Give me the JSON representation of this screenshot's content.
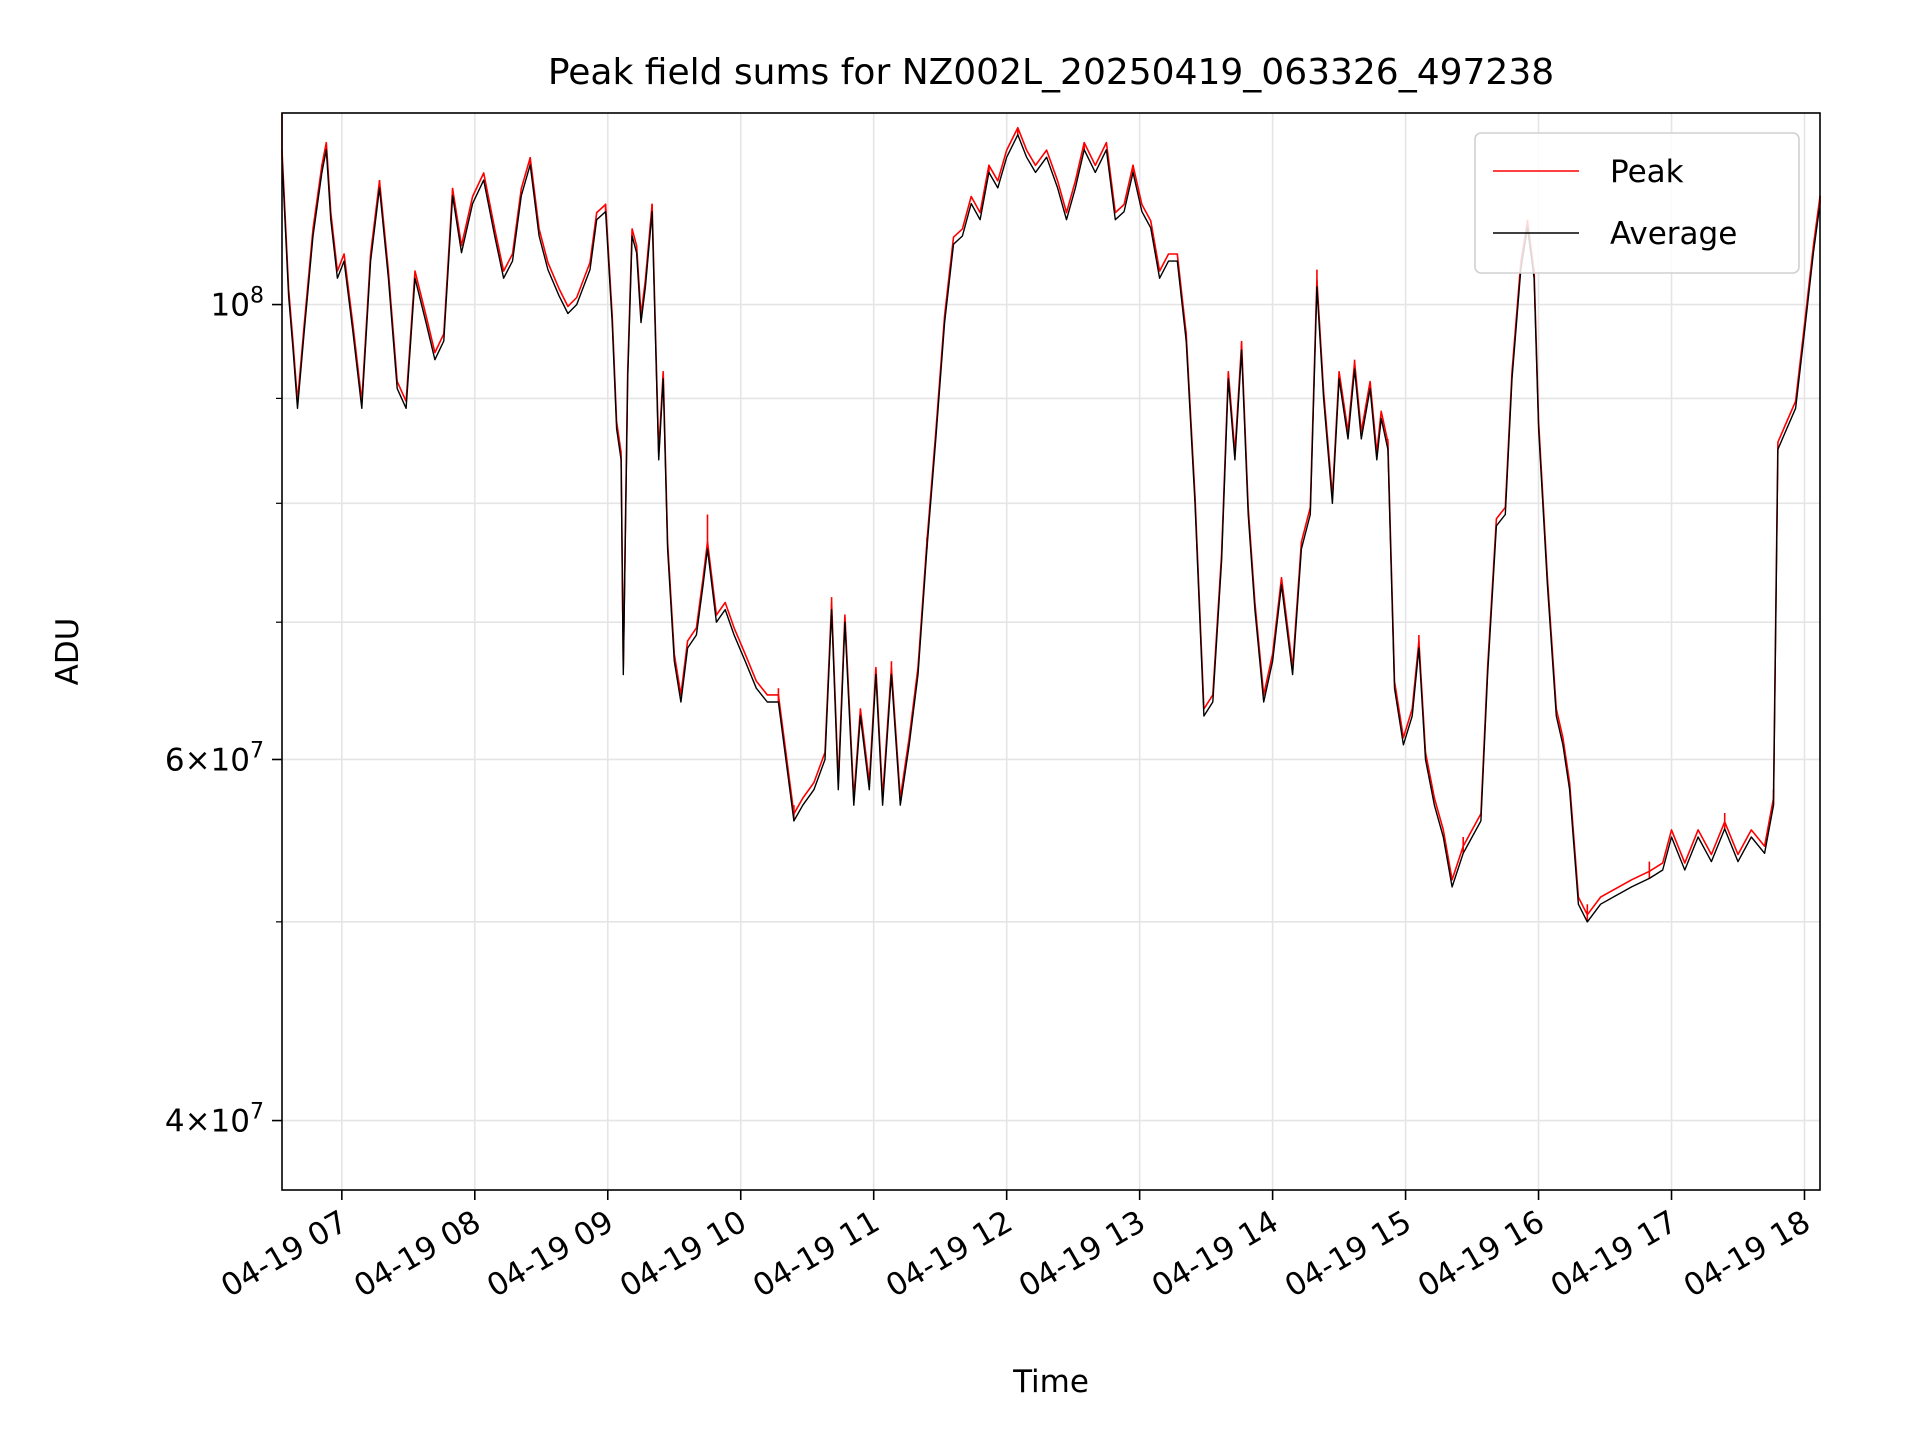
{
  "chart_data": {
    "type": "line",
    "title": "Peak field sums for NZ002L_20250419_063326_497238",
    "xlabel": "Time",
    "ylabel": "ADU",
    "yscale": "log",
    "xlim": [
      "2025-04-19 06:33",
      "2025-04-19 18:07"
    ],
    "ylim": [
      37000000,
      124000000
    ],
    "x_ticks": [
      {
        "time": "2025-04-19 07:00",
        "label": "04-19 07"
      },
      {
        "time": "2025-04-19 08:00",
        "label": "04-19 08"
      },
      {
        "time": "2025-04-19 09:00",
        "label": "04-19 09"
      },
      {
        "time": "2025-04-19 10:00",
        "label": "04-19 10"
      },
      {
        "time": "2025-04-19 11:00",
        "label": "04-19 11"
      },
      {
        "time": "2025-04-19 12:00",
        "label": "04-19 12"
      },
      {
        "time": "2025-04-19 13:00",
        "label": "04-19 13"
      },
      {
        "time": "2025-04-19 14:00",
        "label": "04-19 14"
      },
      {
        "time": "2025-04-19 15:00",
        "label": "04-19 15"
      },
      {
        "time": "2025-04-19 16:00",
        "label": "04-19 16"
      },
      {
        "time": "2025-04-19 17:00",
        "label": "04-19 17"
      },
      {
        "time": "2025-04-19 18:00",
        "label": "04-19 18"
      }
    ],
    "y_major_ticks": [
      {
        "value": 40000000,
        "base": "4×10",
        "exp": "7"
      },
      {
        "value": 60000000,
        "base": "6×10",
        "exp": "7"
      },
      {
        "value": 100000000,
        "base": "10",
        "exp": "8"
      }
    ],
    "y_minor_ticks": [
      50000000,
      70000000,
      80000000,
      90000000
    ],
    "grid": true,
    "legend_position": "top-right",
    "series": [
      {
        "name": "Average",
        "color": "#000000",
        "points": [
          [
            "2025-04-19 06:33",
            118000000
          ],
          [
            "2025-04-19 06:36",
            101000000
          ],
          [
            "2025-04-19 06:38",
            95000000
          ],
          [
            "2025-04-19 06:40",
            89000000
          ],
          [
            "2025-04-19 06:43",
            97000000
          ],
          [
            "2025-04-19 06:47",
            108000000
          ],
          [
            "2025-04-19 06:51",
            116000000
          ],
          [
            "2025-04-19 06:53",
            119000000
          ],
          [
            "2025-04-19 06:55",
            110000000
          ],
          [
            "2025-04-19 06:58",
            103000000
          ],
          [
            "2025-04-19 07:01",
            105000000
          ],
          [
            "2025-04-19 07:05",
            97000000
          ],
          [
            "2025-04-19 07:09",
            89000000
          ],
          [
            "2025-04-19 07:13",
            105000000
          ],
          [
            "2025-04-19 07:17",
            114000000
          ],
          [
            "2025-04-19 07:21",
            103000000
          ],
          [
            "2025-04-19 07:25",
            91000000
          ],
          [
            "2025-04-19 07:29",
            89000000
          ],
          [
            "2025-04-19 07:33",
            103000000
          ],
          [
            "2025-04-19 07:38",
            98000000
          ],
          [
            "2025-04-19 07:42",
            94000000
          ],
          [
            "2025-04-19 07:46",
            96000000
          ],
          [
            "2025-04-19 07:50",
            113000000
          ],
          [
            "2025-04-19 07:54",
            106000000
          ],
          [
            "2025-04-19 07:59",
            112000000
          ],
          [
            "2025-04-19 08:04",
            115000000
          ],
          [
            "2025-04-19 08:09",
            108000000
          ],
          [
            "2025-04-19 08:13",
            103000000
          ],
          [
            "2025-04-19 08:17",
            105000000
          ],
          [
            "2025-04-19 08:21",
            113000000
          ],
          [
            "2025-04-19 08:25",
            117000000
          ],
          [
            "2025-04-19 08:29",
            108000000
          ],
          [
            "2025-04-19 08:33",
            104000000
          ],
          [
            "2025-04-19 08:38",
            101000000
          ],
          [
            "2025-04-19 08:42",
            99000000
          ],
          [
            "2025-04-19 08:46",
            100000000
          ],
          [
            "2025-04-19 08:52",
            104000000
          ],
          [
            "2025-04-19 08:55",
            110000000
          ],
          [
            "2025-04-19 08:59",
            111000000
          ],
          [
            "2025-04-19 09:02",
            98000000
          ],
          [
            "2025-04-19 09:04",
            87000000
          ],
          [
            "2025-04-19 09:06",
            84000000
          ],
          [
            "2025-04-19 09:07",
            66000000
          ],
          [
            "2025-04-19 09:09",
            92000000
          ],
          [
            "2025-04-19 09:11",
            108000000
          ],
          [
            "2025-04-19 09:13",
            106000000
          ],
          [
            "2025-04-19 09:15",
            98000000
          ],
          [
            "2025-04-19 09:17",
            102000000
          ],
          [
            "2025-04-19 09:20",
            111000000
          ],
          [
            "2025-04-19 09:23",
            84000000
          ],
          [
            "2025-04-19 09:25",
            92000000
          ],
          [
            "2025-04-19 09:27",
            76000000
          ],
          [
            "2025-04-19 09:30",
            67000000
          ],
          [
            "2025-04-19 09:33",
            64000000
          ],
          [
            "2025-04-19 09:36",
            68000000
          ],
          [
            "2025-04-19 09:40",
            69000000
          ],
          [
            "2025-04-19 09:43",
            73000000
          ],
          [
            "2025-04-19 09:45",
            76000000
          ],
          [
            "2025-04-19 09:49",
            70000000
          ],
          [
            "2025-04-19 09:53",
            71000000
          ],
          [
            "2025-04-19 09:57",
            69000000
          ],
          [
            "2025-04-19 10:02",
            67000000
          ],
          [
            "2025-04-19 10:07",
            65000000
          ],
          [
            "2025-04-19 10:12",
            64000000
          ],
          [
            "2025-04-19 10:17",
            64000000
          ],
          [
            "2025-04-19 10:24",
            56000000
          ],
          [
            "2025-04-19 10:28",
            57000000
          ],
          [
            "2025-04-19 10:33",
            58000000
          ],
          [
            "2025-04-19 10:38",
            60000000
          ],
          [
            "2025-04-19 10:41",
            71000000
          ],
          [
            "2025-04-19 10:44",
            58000000
          ],
          [
            "2025-04-19 10:47",
            70000000
          ],
          [
            "2025-04-19 10:51",
            57000000
          ],
          [
            "2025-04-19 10:54",
            63000000
          ],
          [
            "2025-04-19 10:58",
            58000000
          ],
          [
            "2025-04-19 11:01",
            66000000
          ],
          [
            "2025-04-19 11:04",
            57000000
          ],
          [
            "2025-04-19 11:08",
            66000000
          ],
          [
            "2025-04-19 11:12",
            57000000
          ],
          [
            "2025-04-19 11:16",
            61000000
          ],
          [
            "2025-04-19 11:20",
            66000000
          ],
          [
            "2025-04-19 11:24",
            76000000
          ],
          [
            "2025-04-19 11:28",
            86000000
          ],
          [
            "2025-04-19 11:32",
            98000000
          ],
          [
            "2025-04-19 11:36",
            107000000
          ],
          [
            "2025-04-19 11:40",
            108000000
          ],
          [
            "2025-04-19 11:44",
            112000000
          ],
          [
            "2025-04-19 11:48",
            110000000
          ],
          [
            "2025-04-19 11:52",
            116000000
          ],
          [
            "2025-04-19 11:56",
            114000000
          ],
          [
            "2025-04-19 12:00",
            118000000
          ],
          [
            "2025-04-19 12:05",
            121000000
          ],
          [
            "2025-04-19 12:09",
            118000000
          ],
          [
            "2025-04-19 12:13",
            116000000
          ],
          [
            "2025-04-19 12:18",
            118000000
          ],
          [
            "2025-04-19 12:23",
            114000000
          ],
          [
            "2025-04-19 12:27",
            110000000
          ],
          [
            "2025-04-19 12:31",
            114000000
          ],
          [
            "2025-04-19 12:35",
            119000000
          ],
          [
            "2025-04-19 12:40",
            116000000
          ],
          [
            "2025-04-19 12:45",
            119000000
          ],
          [
            "2025-04-19 12:49",
            110000000
          ],
          [
            "2025-04-19 12:53",
            111000000
          ],
          [
            "2025-04-19 12:57",
            116000000
          ],
          [
            "2025-04-19 13:01",
            111000000
          ],
          [
            "2025-04-19 13:05",
            109000000
          ],
          [
            "2025-04-19 13:09",
            103000000
          ],
          [
            "2025-04-19 13:13",
            105000000
          ],
          [
            "2025-04-19 13:17",
            105000000
          ],
          [
            "2025-04-19 13:21",
            96000000
          ],
          [
            "2025-04-19 13:25",
            80000000
          ],
          [
            "2025-04-19 13:29",
            63000000
          ],
          [
            "2025-04-19 13:33",
            64000000
          ],
          [
            "2025-04-19 13:37",
            75000000
          ],
          [
            "2025-04-19 13:40",
            92000000
          ],
          [
            "2025-04-19 13:43",
            84000000
          ],
          [
            "2025-04-19 13:46",
            95000000
          ],
          [
            "2025-04-19 13:49",
            79000000
          ],
          [
            "2025-04-19 13:52",
            71000000
          ],
          [
            "2025-04-19 13:56",
            64000000
          ],
          [
            "2025-04-19 14:00",
            67000000
          ],
          [
            "2025-04-19 14:04",
            73000000
          ],
          [
            "2025-04-19 14:09",
            66000000
          ],
          [
            "2025-04-19 14:13",
            76000000
          ],
          [
            "2025-04-19 14:17",
            79000000
          ],
          [
            "2025-04-19 14:20",
            102000000
          ],
          [
            "2025-04-19 14:23",
            90000000
          ],
          [
            "2025-04-19 14:27",
            80000000
          ],
          [
            "2025-04-19 14:30",
            92000000
          ],
          [
            "2025-04-19 14:34",
            86000000
          ],
          [
            "2025-04-19 14:37",
            93000000
          ],
          [
            "2025-04-19 14:40",
            86000000
          ],
          [
            "2025-04-19 14:44",
            91000000
          ],
          [
            "2025-04-19 14:47",
            84000000
          ],
          [
            "2025-04-19 14:49",
            88000000
          ],
          [
            "2025-04-19 14:52",
            85000000
          ],
          [
            "2025-04-19 14:55",
            65000000
          ],
          [
            "2025-04-19 14:59",
            61000000
          ],
          [
            "2025-04-19 15:03",
            63000000
          ],
          [
            "2025-04-19 15:06",
            68000000
          ],
          [
            "2025-04-19 15:09",
            60000000
          ],
          [
            "2025-04-19 15:13",
            57000000
          ],
          [
            "2025-04-19 15:17",
            55000000
          ],
          [
            "2025-04-19 15:21",
            52000000
          ],
          [
            "2025-04-19 15:26",
            54000000
          ],
          [
            "2025-04-19 15:30",
            55000000
          ],
          [
            "2025-04-19 15:34",
            56000000
          ],
          [
            "2025-04-19 15:37",
            66000000
          ],
          [
            "2025-04-19 15:41",
            78000000
          ],
          [
            "2025-04-19 15:45",
            79000000
          ],
          [
            "2025-04-19 15:48",
            92000000
          ],
          [
            "2025-04-19 15:52",
            104000000
          ],
          [
            "2025-04-19 15:55",
            109000000
          ],
          [
            "2025-04-19 15:58",
            103000000
          ],
          [
            "2025-04-19 16:00",
            87000000
          ],
          [
            "2025-04-19 16:04",
            73000000
          ],
          [
            "2025-04-19 16:08",
            63000000
          ],
          [
            "2025-04-19 16:11",
            61000000
          ],
          [
            "2025-04-19 16:14",
            58000000
          ],
          [
            "2025-04-19 16:18",
            51000000
          ],
          [
            "2025-04-19 16:22",
            50000000
          ],
          [
            "2025-04-19 16:28",
            51000000
          ],
          [
            "2025-04-19 16:35",
            51500000
          ],
          [
            "2025-04-19 16:42",
            52000000
          ],
          [
            "2025-04-19 16:50",
            52500000
          ],
          [
            "2025-04-19 16:56",
            53000000
          ],
          [
            "2025-04-19 17:00",
            55000000
          ],
          [
            "2025-04-19 17:06",
            53000000
          ],
          [
            "2025-04-19 17:12",
            55000000
          ],
          [
            "2025-04-19 17:18",
            53500000
          ],
          [
            "2025-04-19 17:24",
            55500000
          ],
          [
            "2025-04-19 17:30",
            53500000
          ],
          [
            "2025-04-19 17:36",
            55000000
          ],
          [
            "2025-04-19 17:42",
            54000000
          ],
          [
            "2025-04-19 17:46",
            57000000
          ],
          [
            "2025-04-19 17:48",
            85000000
          ],
          [
            "2025-04-19 17:52",
            87000000
          ],
          [
            "2025-04-19 17:56",
            89000000
          ],
          [
            "2025-04-19 18:00",
            97000000
          ],
          [
            "2025-04-19 18:04",
            106000000
          ],
          [
            "2025-04-19 18:07",
            112000000
          ]
        ]
      },
      {
        "name": "Peak",
        "color": "#ff0000",
        "points": [
          [
            "2025-04-19 06:33",
            124000000
          ],
          [
            "2025-04-19 06:51",
            117000000
          ],
          [
            "2025-04-19 06:55",
            111000000
          ],
          [
            "2025-04-19 07:17",
            115000000
          ],
          [
            "2025-04-19 07:50",
            114000000
          ],
          [
            "2025-04-19 08:25",
            118000000
          ],
          [
            "2025-04-19 08:59",
            112000000
          ],
          [
            "2025-04-19 09:20",
            112000000
          ],
          [
            "2025-04-19 09:45",
            79000000
          ],
          [
            "2025-04-19 10:17",
            65000000
          ],
          [
            "2025-04-19 10:24",
            57000000
          ],
          [
            "2025-04-19 10:41",
            72000000
          ],
          [
            "2025-04-19 11:08",
            67000000
          ],
          [
            "2025-04-19 11:24",
            77000000
          ],
          [
            "2025-04-19 11:52",
            117000000
          ],
          [
            "2025-04-19 12:05",
            122000000
          ],
          [
            "2025-04-19 12:35",
            120000000
          ],
          [
            "2025-04-19 12:57",
            117000000
          ],
          [
            "2025-04-19 13:21",
            97000000
          ],
          [
            "2025-04-19 13:46",
            96000000
          ],
          [
            "2025-04-19 14:20",
            104000000
          ],
          [
            "2025-04-19 14:37",
            94000000
          ],
          [
            "2025-04-19 14:52",
            86000000
          ],
          [
            "2025-04-19 15:06",
            69000000
          ],
          [
            "2025-04-19 15:26",
            55000000
          ],
          [
            "2025-04-19 15:55",
            110000000
          ],
          [
            "2025-04-19 16:22",
            51000000
          ],
          [
            "2025-04-19 16:50",
            53500000
          ],
          [
            "2025-04-19 17:24",
            56500000
          ],
          [
            "2025-04-19 17:46",
            58000000
          ],
          [
            "2025-04-19 18:07",
            113000000
          ]
        ]
      }
    ]
  }
}
